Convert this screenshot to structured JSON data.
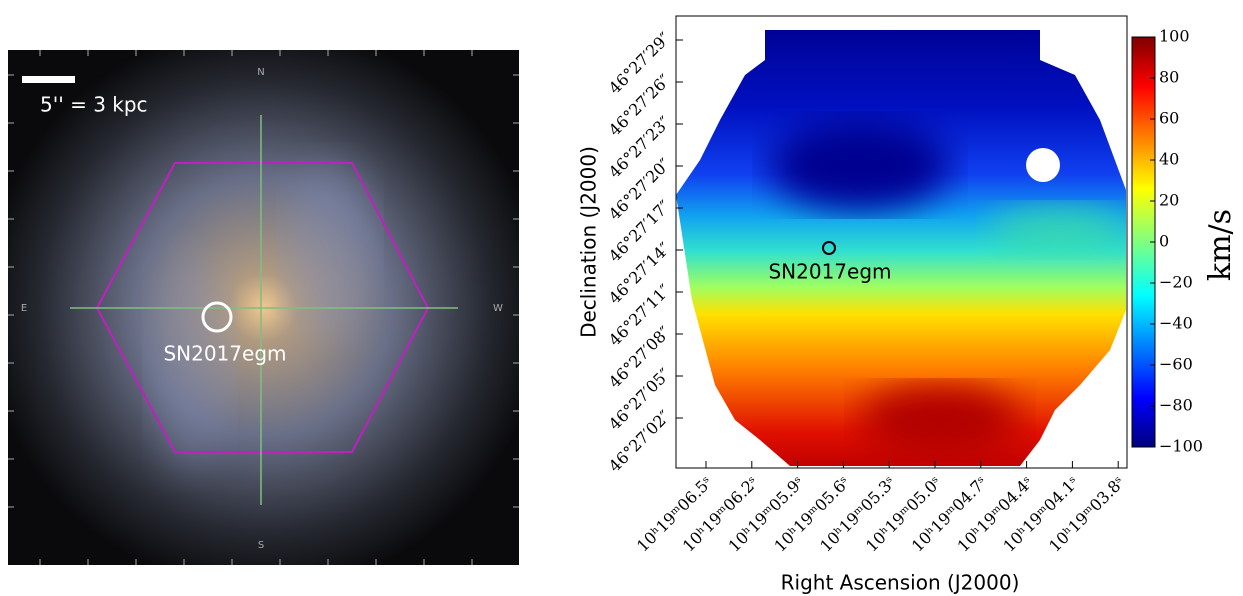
{
  "left_panel": {
    "scale_label": "5'' = 3 kpc",
    "sn_label": "SN2017egm",
    "compass": {
      "n": "N",
      "s": "S",
      "e": "E",
      "w": "W"
    }
  },
  "right_panel": {
    "y_label": "Declination (J2000)",
    "x_label": "Right Ascension (J2000)",
    "sn_label": "SN2017egm",
    "dec_ticks": [
      "46°27′29″",
      "46°27′26″",
      "46°27′23″",
      "46°27′20″",
      "46°27′17″",
      "46°27′14″",
      "46°27′11″",
      "46°27′08″",
      "46°27′05″",
      "46°27′02″"
    ],
    "ra_ticks": [
      "10ʰ19ᵐ06.5ˢ",
      "10ʰ19ᵐ06.2ˢ",
      "10ʰ19ᵐ05.9ˢ",
      "10ʰ19ᵐ05.6ˢ",
      "10ʰ19ᵐ05.3ˢ",
      "10ʰ19ᵐ05.0ˢ",
      "10ʰ19ᵐ04.7ˢ",
      "10ʰ19ᵐ04.4ˢ",
      "10ʰ19ᵐ04.1ˢ",
      "10ʰ19ᵐ03.8ˢ"
    ],
    "colorbar": {
      "label": "km/s",
      "lim": [
        -100,
        100
      ],
      "ticks": [
        100,
        80,
        60,
        40,
        20,
        0,
        {
          "value": -20,
          "label": "−20"
        },
        {
          "value": -40,
          "label": "−40"
        },
        {
          "value": -60,
          "label": "−60"
        },
        {
          "value": -80,
          "label": "−80"
        },
        {
          "value": -100,
          "label": "−100"
        }
      ]
    }
  }
}
